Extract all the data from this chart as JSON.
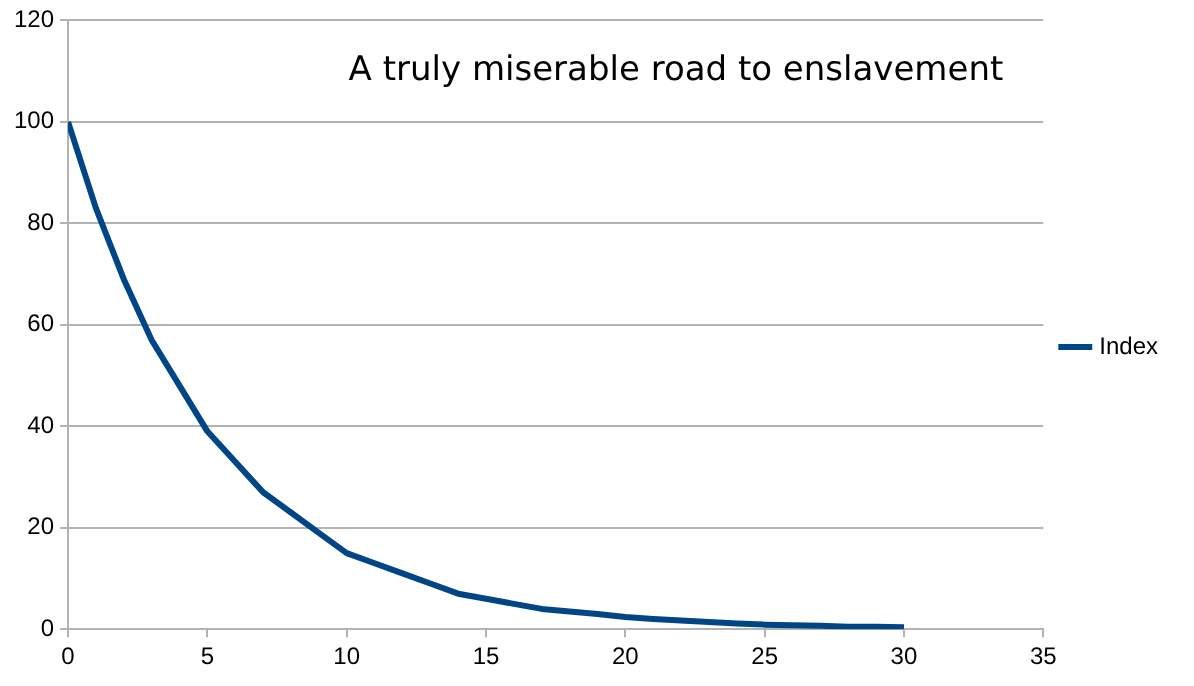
{
  "chart_data": {
    "type": "line",
    "title": "A truly miserable road to enslavement",
    "x": [
      0,
      1,
      2,
      3,
      4,
      5,
      6,
      7,
      8,
      9,
      10,
      11,
      12,
      13,
      14,
      15,
      16,
      17,
      18,
      19,
      20,
      21,
      22,
      23,
      24,
      25,
      26,
      27,
      28,
      29,
      30
    ],
    "series": [
      {
        "name": "Index",
        "color": "#004586",
        "values": [
          100,
          83,
          69,
          57,
          48,
          39,
          33,
          27,
          23,
          19,
          15,
          13,
          11,
          9,
          7,
          6,
          5,
          4,
          3.5,
          3,
          2.4,
          2,
          1.7,
          1.4,
          1.1,
          0.9,
          0.8,
          0.7,
          0.5,
          0.5,
          0.4
        ]
      }
    ],
    "xlim": [
      0,
      35
    ],
    "xticks": [
      0,
      5,
      10,
      15,
      20,
      25,
      30,
      35
    ],
    "ylim": [
      0,
      120
    ],
    "yticks": [
      0,
      20,
      40,
      60,
      80,
      100,
      120
    ],
    "grid": "y",
    "legend": "right",
    "marker": "none",
    "line_style": "solid"
  }
}
